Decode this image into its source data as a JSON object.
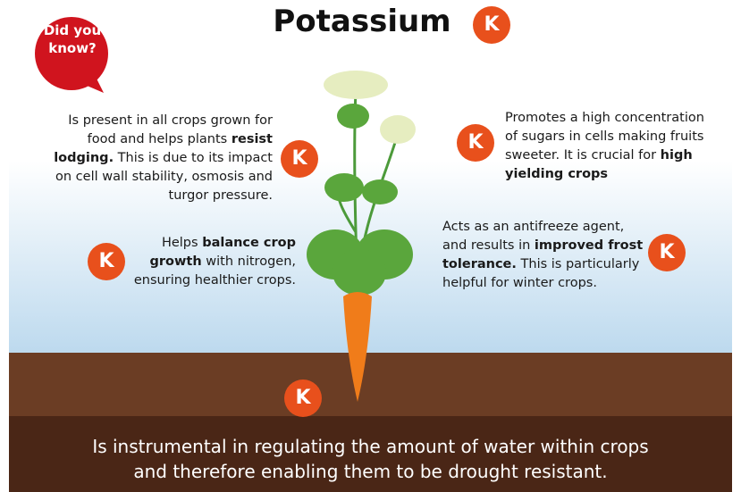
{
  "title": "Potassium",
  "symbol": "K",
  "callout": "Did you know?",
  "facts": [
    {
      "segments": [
        "Is present in all crops grown for food and helps plants ",
        "resist lodging.",
        " This is due to its impact on cell wall stability, osmosis and turgor pressure."
      ]
    },
    {
      "segments": [
        "Helps ",
        "balance crop growth",
        " with nitrogen, ensuring healthier crops."
      ]
    },
    {
      "segments": [
        "Promotes a high concentration of sugars in cells making fruits sweeter. It is crucial for ",
        "high yielding crops"
      ]
    },
    {
      "segments": [
        "Acts as an antifreeze agent, and results in ",
        "improved frost tolerance.",
        " This is particularly helpful for winter crops."
      ]
    }
  ],
  "footer": "Is instrumental in regulating the amount of water within crops and therefore enabling them to be drought resistant."
}
